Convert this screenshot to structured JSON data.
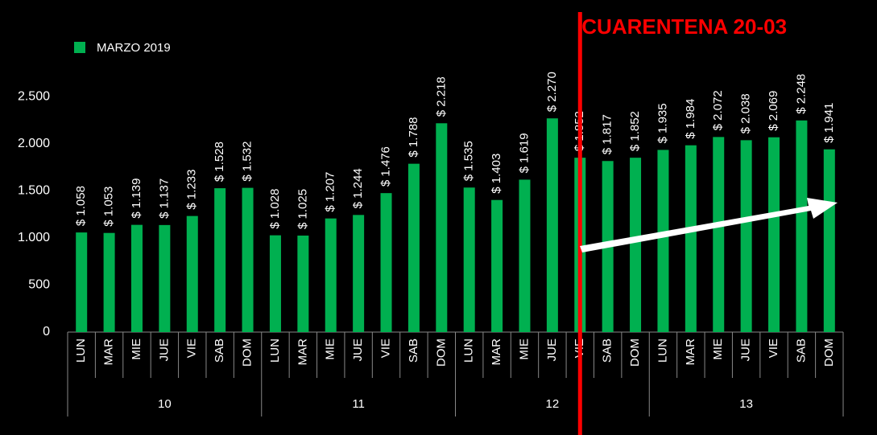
{
  "chart_data": {
    "type": "bar",
    "categories": [
      "LUN",
      "MAR",
      "MIE",
      "JUE",
      "VIE",
      "SAB",
      "DOM",
      "LUN",
      "MAR",
      "MIE",
      "JUE",
      "VIE",
      "SAB",
      "DOM",
      "LUN",
      "MAR",
      "MIE",
      "JUE",
      "VIE",
      "SAB",
      "DOM",
      "LUN",
      "MAR",
      "MIE",
      "JUE",
      "VIE",
      "SAB",
      "DOM"
    ],
    "groups": [
      "10",
      "11",
      "12",
      "13"
    ],
    "series": [
      {
        "name": "MARZO 2019",
        "color": "#00b050",
        "values": [
          1058,
          1053,
          1139,
          1137,
          1233,
          1528,
          1532,
          1028,
          1025,
          1207,
          1244,
          1476,
          1788,
          2218,
          1535,
          1403,
          1619,
          2270,
          1852,
          1817,
          1852,
          1935,
          1984,
          2072,
          2038,
          2069,
          2248,
          1941
        ],
        "value_labels": [
          "$ 1.058",
          "$ 1.053",
          "$ 1.139",
          "$ 1.137",
          "$ 1.233",
          "$ 1.528",
          "$ 1.532",
          "$ 1.028",
          "$ 1.025",
          "$ 1.207",
          "$ 1.244",
          "$ 1.476",
          "$ 1.788",
          "$ 2.218",
          "$ 1.535",
          "$ 1.403",
          "$ 1.619",
          "$ 2.270",
          "$ 1.852",
          "$ 1.817",
          "$ 1.852",
          "$ 1.935",
          "$ 1.984",
          "$ 2.072",
          "$ 2.038",
          "$ 2.069",
          "$ 2.248",
          "$ 1.941"
        ]
      }
    ],
    "ylim": [
      0,
      2750
    ],
    "yticks": [
      0,
      500,
      {
        "value": 1000,
        "label": "1.000"
      },
      {
        "value": 1500,
        "label": "1.500"
      },
      {
        "value": 2000,
        "label": "2.000"
      },
      {
        "value": 2500,
        "label": "2.500"
      }
    ],
    "grid": false,
    "legend": "top-left",
    "annotation": "CUARENTENA 20-03",
    "annotation_color": "#ff0000"
  }
}
